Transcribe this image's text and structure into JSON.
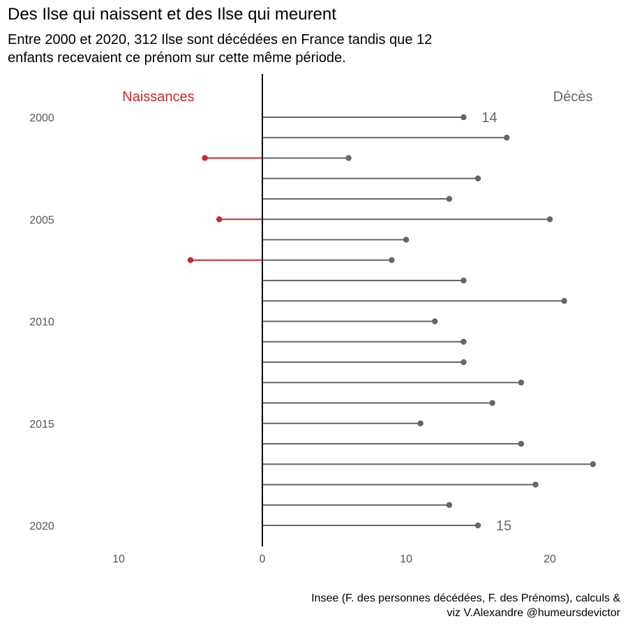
{
  "title": "Des Ilse qui naissent et des Ilse qui meurent",
  "subtitle_line1": "Entre 2000 et 2020, 312 Ilse sont décédées en France tandis que 12",
  "subtitle_line2": "enfants recevaient ce prénom sur cette même période.",
  "caption_line1": "Insee (F. des personnes décédées, F. des Prénoms), calculs &",
  "caption_line2": "viz V.Alexandre @humeursdevictor",
  "colors": {
    "naissances": "#c8282a",
    "deces": "#666666",
    "axis": "#000000",
    "text": "#555555"
  },
  "chart_data": {
    "type": "lollipop",
    "orientation": "horizontal",
    "years": [
      2000,
      2001,
      2002,
      2003,
      2004,
      2005,
      2006,
      2007,
      2008,
      2009,
      2010,
      2011,
      2012,
      2013,
      2014,
      2015,
      2016,
      2017,
      2018,
      2019,
      2020
    ],
    "series": [
      {
        "name": "Décès",
        "side": "right",
        "values": [
          14,
          17,
          6,
          15,
          13,
          20,
          10,
          9,
          14,
          21,
          12,
          14,
          14,
          18,
          16,
          11,
          18,
          23,
          19,
          13,
          15
        ]
      },
      {
        "name": "Naissances",
        "side": "left",
        "values": [
          0,
          0,
          4,
          0,
          0,
          3,
          0,
          5,
          0,
          0,
          0,
          0,
          0,
          0,
          0,
          0,
          0,
          0,
          0,
          0,
          0
        ]
      }
    ],
    "y_tick_labels": [
      "2000",
      "2005",
      "2010",
      "2015",
      "2020"
    ],
    "x_tick_values": [
      -10,
      0,
      10,
      20
    ],
    "x_tick_labels": [
      "10",
      "0",
      "10",
      "20"
    ],
    "xlim": [
      -10,
      23
    ],
    "annotations": [
      {
        "year": 2000,
        "text": "14"
      },
      {
        "year": 2020,
        "text": "15"
      }
    ],
    "grid": false
  }
}
